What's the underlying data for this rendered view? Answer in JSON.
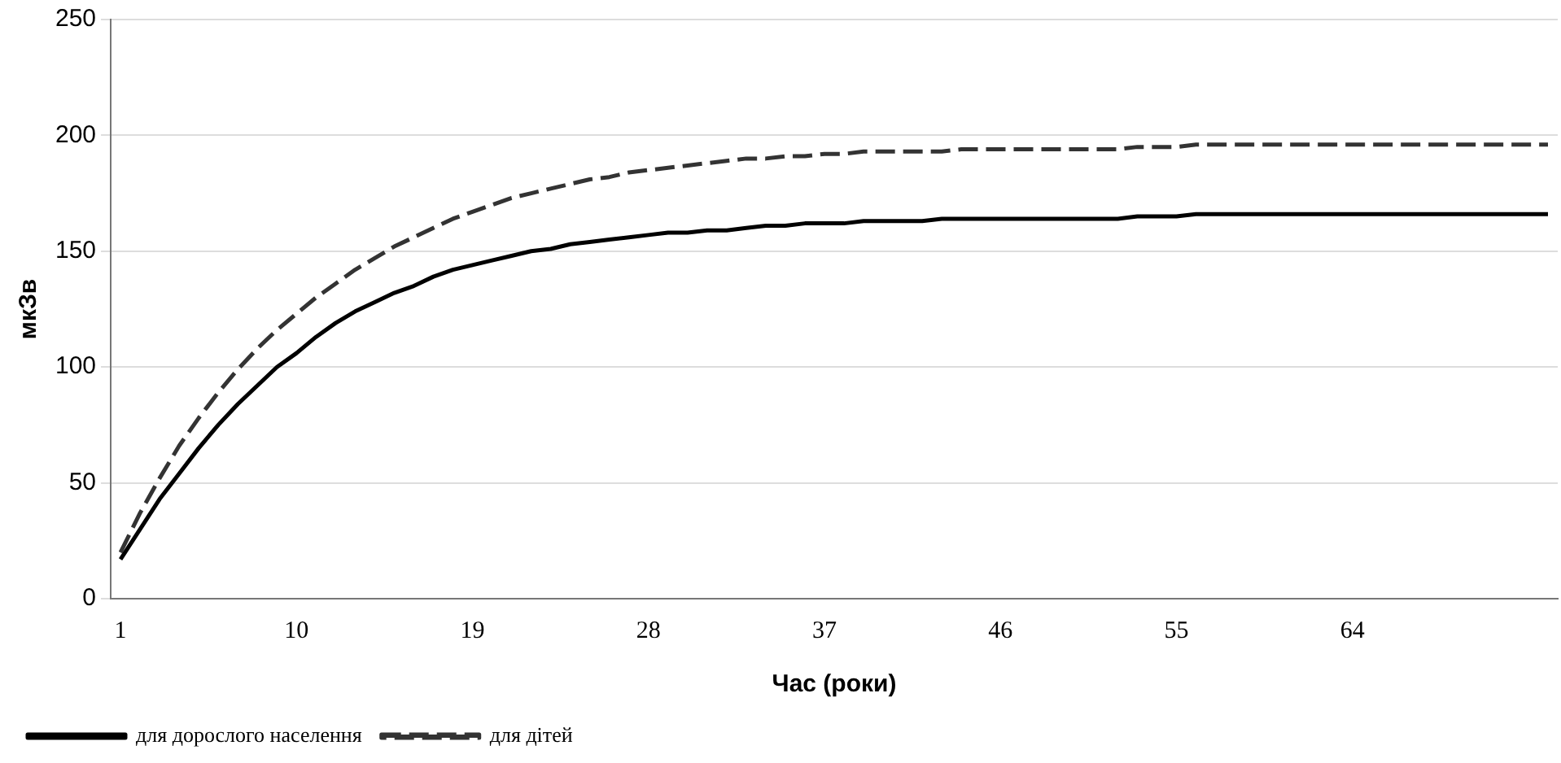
{
  "chart_data": {
    "type": "line",
    "xlabel": "Час (роки)",
    "ylabel": "мкЗв",
    "categories": [
      "1",
      null,
      null,
      null,
      null,
      null,
      null,
      null,
      null,
      "10",
      null,
      null,
      null,
      null,
      null,
      null,
      null,
      null,
      "19",
      null,
      null,
      null,
      null,
      null,
      null,
      null,
      null,
      "28",
      null,
      null,
      null,
      null,
      null,
      null,
      null,
      null,
      "37",
      null,
      null,
      null,
      null,
      null,
      null,
      null,
      null,
      "46",
      null,
      null,
      null,
      null,
      null,
      null,
      null,
      null,
      "55",
      null,
      null,
      null,
      null,
      null,
      null,
      null,
      null,
      "64",
      null,
      null,
      null,
      null,
      null,
      null,
      null,
      null,
      null,
      null
    ],
    "series": [
      {
        "name": "для дорослого населення",
        "color": "#000000",
        "line_style": "solid",
        "values": [
          17,
          30,
          43,
          54,
          65,
          75,
          84,
          92,
          100,
          106,
          113,
          119,
          124,
          128,
          132,
          135,
          139,
          142,
          144,
          146,
          148,
          150,
          151,
          153,
          154,
          155,
          156,
          157,
          158,
          158,
          159,
          159,
          160,
          161,
          161,
          162,
          162,
          162,
          163,
          163,
          163,
          163,
          164,
          164,
          164,
          164,
          164,
          164,
          164,
          164,
          164,
          164,
          165,
          165,
          165,
          166,
          166,
          166,
          166,
          166,
          166,
          166,
          166,
          166,
          166,
          166,
          166,
          166,
          166,
          166,
          166,
          166,
          166,
          166
        ]
      },
      {
        "name": "для дітей",
        "color": "#333333",
        "line_style": "dashed",
        "values": [
          20,
          37,
          52,
          66,
          78,
          89,
          99,
          108,
          116,
          123,
          130,
          136,
          142,
          147,
          152,
          156,
          160,
          164,
          167,
          170,
          173,
          175,
          177,
          179,
          181,
          182,
          184,
          185,
          186,
          187,
          188,
          189,
          190,
          190,
          191,
          191,
          192,
          192,
          193,
          193,
          193,
          193,
          193,
          194,
          194,
          194,
          194,
          194,
          194,
          194,
          194,
          194,
          195,
          195,
          195,
          196,
          196,
          196,
          196,
          196,
          196,
          196,
          196,
          196,
          196,
          196,
          196,
          196,
          196,
          196,
          196,
          196,
          196,
          196
        ]
      }
    ],
    "ylim": [
      0,
      250
    ],
    "yticks": [
      0,
      50,
      100,
      150,
      200,
      250
    ],
    "grid": "y",
    "legend": "bottom left",
    "marker": "none"
  }
}
